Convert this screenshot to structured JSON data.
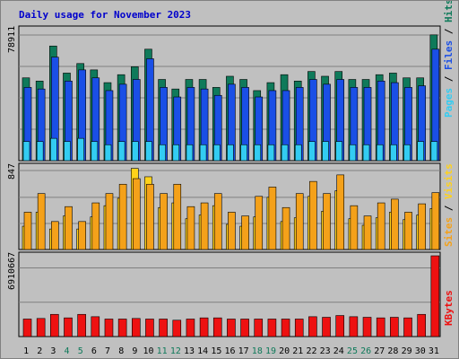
{
  "title": "Daily usage for November 2023",
  "colors": {
    "background": "#c0c0c0",
    "pages": "#1a4fe6",
    "files": "#0f7a5a",
    "hits": "#33ccf2",
    "visits": "#f4a11a",
    "sites": "#ffd21a",
    "kbytes": "#ee1111",
    "title": "#0000cc"
  },
  "chart_data": [
    {
      "type": "bar",
      "name_panel": "top",
      "categories": [
        "1",
        "2",
        "3",
        "4",
        "5",
        "6",
        "7",
        "8",
        "9",
        "10",
        "11",
        "12",
        "13",
        "14",
        "15",
        "16",
        "17",
        "18",
        "19",
        "20",
        "21",
        "22",
        "23",
        "24",
        "25",
        "26",
        "27",
        "28",
        "29",
        "30",
        "31"
      ],
      "weekend_days": [
        "4",
        "5",
        "11",
        "12",
        "18",
        "19",
        "25",
        "26"
      ],
      "y_tick_label": "78911",
      "ymax": 78911,
      "legend_right": [
        "Pages",
        "Files",
        "Hits"
      ],
      "series": [
        {
          "name": "Hits",
          "values": [
            52000,
            50000,
            72000,
            55000,
            61000,
            57000,
            49000,
            54000,
            59000,
            70000,
            51000,
            45000,
            51000,
            51000,
            46000,
            53000,
            51000,
            44000,
            49000,
            54000,
            50000,
            56000,
            53000,
            56000,
            51000,
            51000,
            54000,
            55000,
            52000,
            52000,
            79000
          ]
        },
        {
          "name": "Files",
          "values": [
            52000,
            50000,
            72000,
            55000,
            61000,
            57000,
            49000,
            54000,
            59000,
            70000,
            51000,
            45000,
            51000,
            51000,
            46000,
            53000,
            51000,
            44000,
            49000,
            54000,
            50000,
            56000,
            53000,
            56000,
            51000,
            51000,
            54000,
            55000,
            52000,
            52000,
            79000
          ]
        },
        {
          "name": "Pages",
          "values": [
            46000,
            45000,
            65000,
            50000,
            57000,
            52000,
            44000,
            48000,
            51000,
            64000,
            46000,
            40000,
            46000,
            45000,
            41000,
            48000,
            46000,
            40000,
            44000,
            44000,
            46000,
            51000,
            48000,
            51000,
            46000,
            46000,
            50000,
            49000,
            46000,
            47000,
            70000
          ]
        },
        {
          "name": "Pages",
          "values": [
            6000,
            6000,
            7000,
            6000,
            7000,
            6000,
            5000,
            6000,
            6000,
            6000,
            5000,
            5000,
            5000,
            5000,
            5000,
            5000,
            5000,
            5000,
            5000,
            5000,
            5000,
            6000,
            6000,
            6000,
            5000,
            5000,
            5000,
            5000,
            5000,
            6000,
            6000
          ]
        }
      ]
    },
    {
      "type": "bar",
      "name_panel": "middle",
      "y_tick_label": "847",
      "ymax": 847,
      "legend_right": [
        "Sites",
        "Visits"
      ],
      "series": [
        {
          "name": "Visits",
          "values": [
            400,
            600,
            300,
            460,
            300,
            500,
            600,
            700,
            760,
            700,
            600,
            700,
            460,
            500,
            600,
            400,
            360,
            570,
            670,
            450,
            600,
            730,
            600,
            800,
            470,
            360,
            500,
            540,
            400,
            490,
            610
          ]
        },
        {
          "name": "Sites",
          "values": [
            250,
            400,
            220,
            360,
            220,
            350,
            470,
            550,
            870,
            780,
            450,
            500,
            330,
            370,
            470,
            270,
            250,
            350,
            560,
            300,
            340,
            570,
            410,
            630,
            330,
            260,
            340,
            400,
            320,
            370,
            440
          ]
        }
      ]
    },
    {
      "type": "bar",
      "name_panel": "bottom",
      "y_tick_label": "6910667",
      "ymax": 6910667,
      "legend_right": [
        "KBytes"
      ],
      "series": [
        {
          "name": "KBytes",
          "values": [
            1500000,
            1550000,
            1900000,
            1600000,
            1900000,
            1700000,
            1500000,
            1500000,
            1550000,
            1500000,
            1500000,
            1400000,
            1500000,
            1600000,
            1600000,
            1500000,
            1500000,
            1500000,
            1500000,
            1500000,
            1500000,
            1700000,
            1650000,
            1800000,
            1700000,
            1650000,
            1600000,
            1650000,
            1600000,
            1900000,
            6910667
          ]
        }
      ]
    }
  ]
}
